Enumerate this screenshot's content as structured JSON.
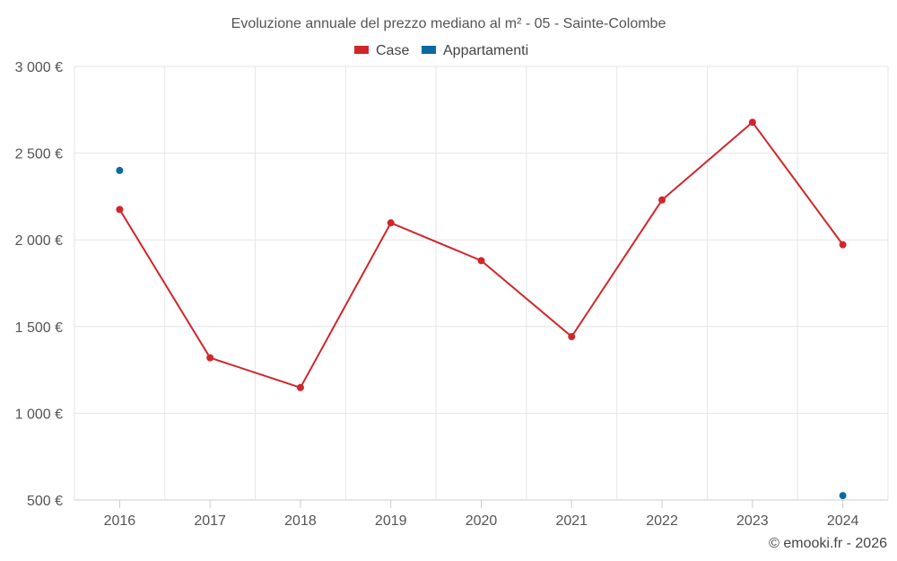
{
  "chart_data": {
    "type": "line",
    "title": "Evoluzione annuale del prezzo mediano al m² - 05 - Sainte-Colombe",
    "categories": [
      "2016",
      "2017",
      "2018",
      "2019",
      "2020",
      "2021",
      "2022",
      "2023",
      "2024"
    ],
    "ylim": [
      500,
      3000
    ],
    "yticks": [
      3000,
      2500,
      2000,
      1500,
      1000,
      500
    ],
    "ytick_labels": [
      "3 000 €",
      "2 500 €",
      "2 000 €",
      "1 500 €",
      "1 000 €",
      "500 €"
    ],
    "grid": true,
    "legend_position": "top-center",
    "series": [
      {
        "name": "Case",
        "color": "#d0262b",
        "line": true,
        "values": [
          2175,
          1320,
          1148,
          2098,
          1880,
          1442,
          2230,
          2678,
          1972
        ]
      },
      {
        "name": "Appartamenti",
        "color": "#0b6aa2",
        "line": false,
        "values": [
          2400,
          null,
          null,
          null,
          null,
          null,
          null,
          null,
          525
        ]
      }
    ]
  },
  "credit": "© emooki.fr - 2026"
}
